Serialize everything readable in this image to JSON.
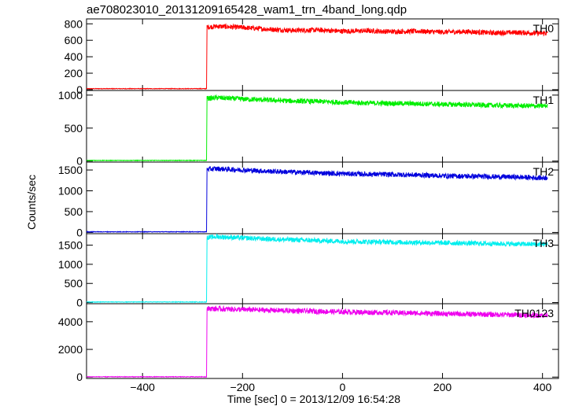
{
  "title": "ae708023010_20131209165428_wam1_trn_4band_long.qdp",
  "ylabel": "Counts/sec",
  "xlabel": "Time [sec] 0 = 2013/12/09 16:54:28",
  "chart_data": [
    {
      "type": "line",
      "name": "TH0",
      "color": "#ff0000",
      "xlim": [
        -512,
        432
      ],
      "ylim": [
        -10,
        860
      ],
      "yticks": [
        0,
        200,
        400,
        600,
        800
      ],
      "xticks": [
        -400,
        -200,
        0,
        200,
        400
      ],
      "x": [
        -512,
        -272,
        -271,
        -250,
        -200,
        -150,
        -100,
        -50,
        0,
        50,
        100,
        150,
        200,
        250,
        300,
        350,
        400,
        410
      ],
      "y": [
        12,
        12,
        760,
        770,
        755,
        735,
        720,
        725,
        710,
        715,
        705,
        710,
        700,
        705,
        690,
        695,
        685,
        690
      ]
    },
    {
      "type": "line",
      "name": "TH1",
      "color": "#00ee00",
      "xlim": [
        -512,
        432
      ],
      "ylim": [
        -15,
        1070
      ],
      "yticks": [
        0,
        500,
        1000
      ],
      "xticks": [
        -400,
        -200,
        0,
        200,
        400
      ],
      "x": [
        -512,
        -272,
        -271,
        -250,
        -200,
        -150,
        -100,
        -50,
        0,
        50,
        100,
        150,
        200,
        250,
        300,
        350,
        400,
        410
      ],
      "y": [
        10,
        10,
        950,
        960,
        940,
        925,
        910,
        905,
        890,
        880,
        875,
        870,
        860,
        855,
        845,
        840,
        835,
        840
      ]
    },
    {
      "type": "line",
      "name": "TH2",
      "color": "#0000dd",
      "xlim": [
        -512,
        432
      ],
      "ylim": [
        -30,
        1690
      ],
      "yticks": [
        0,
        500,
        1000,
        1500
      ],
      "xticks": [
        -400,
        -200,
        0,
        200,
        400
      ],
      "x": [
        -512,
        -272,
        -271,
        -250,
        -200,
        -150,
        -100,
        -50,
        0,
        50,
        100,
        150,
        200,
        250,
        300,
        350,
        400,
        410
      ],
      "y": [
        15,
        15,
        1520,
        1530,
        1500,
        1470,
        1450,
        1430,
        1410,
        1400,
        1390,
        1380,
        1360,
        1350,
        1340,
        1330,
        1310,
        1320
      ]
    },
    {
      "type": "line",
      "name": "TH3",
      "color": "#00eeee",
      "xlim": [
        -512,
        432
      ],
      "ylim": [
        -30,
        1800
      ],
      "yticks": [
        0,
        500,
        1000,
        1500
      ],
      "xticks": [
        -400,
        -200,
        0,
        200,
        400
      ],
      "x": [
        -512,
        -272,
        -271,
        -250,
        -200,
        -150,
        -100,
        -50,
        0,
        50,
        100,
        150,
        200,
        250,
        300,
        350,
        400,
        410
      ],
      "y": [
        15,
        15,
        1700,
        1720,
        1690,
        1660,
        1640,
        1620,
        1600,
        1590,
        1580,
        1570,
        1560,
        1550,
        1540,
        1530,
        1520,
        1530
      ]
    },
    {
      "type": "line",
      "name": "TH0123",
      "color": "#ee00ee",
      "xlim": [
        -512,
        432
      ],
      "ylim": [
        -100,
        5300
      ],
      "yticks": [
        0,
        2000,
        4000
      ],
      "xticks": [
        -400,
        -200,
        0,
        200,
        400
      ],
      "x": [
        -512,
        -272,
        -271,
        -250,
        -200,
        -150,
        -100,
        -50,
        0,
        50,
        100,
        150,
        200,
        250,
        300,
        350,
        400,
        410
      ],
      "y": [
        20,
        20,
        4950,
        4930,
        4880,
        4830,
        4790,
        4750,
        4710,
        4680,
        4650,
        4620,
        4580,
        4550,
        4520,
        4490,
        4460,
        4480
      ]
    }
  ]
}
